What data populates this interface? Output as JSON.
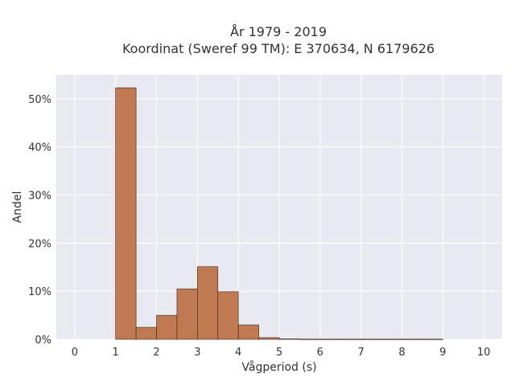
{
  "chart_data": {
    "type": "bar",
    "title_line1": "År 1979 - 2019",
    "title_line2": "Koordinat (Sweref 99 TM): E 370634, N 6179626",
    "xlabel": "Vågperiod (s)",
    "ylabel": "Andel",
    "bin_width": 0.5,
    "bins": [
      {
        "start": 1.0,
        "value": 52.3
      },
      {
        "start": 1.5,
        "value": 2.5
      },
      {
        "start": 2.0,
        "value": 5.0
      },
      {
        "start": 2.5,
        "value": 10.5
      },
      {
        "start": 3.0,
        "value": 15.1
      },
      {
        "start": 3.5,
        "value": 9.9
      },
      {
        "start": 4.0,
        "value": 3.0
      },
      {
        "start": 4.5,
        "value": 0.35
      },
      {
        "start": 5.0,
        "value": 0.1
      },
      {
        "start": 5.5,
        "value": 0.05
      },
      {
        "start": 6.0,
        "value": 0.05
      },
      {
        "start": 6.5,
        "value": 0.05
      },
      {
        "start": 7.0,
        "value": 0.05
      },
      {
        "start": 7.5,
        "value": 0.05
      },
      {
        "start": 8.0,
        "value": 0.05
      },
      {
        "start": 8.5,
        "value": 0.05
      }
    ],
    "xlim": [
      -0.45,
      10.45
    ],
    "ylim": [
      0,
      55
    ],
    "x_ticks": [
      0,
      1,
      2,
      3,
      4,
      5,
      6,
      7,
      8,
      9,
      10
    ],
    "y_ticks": [
      0,
      10,
      20,
      30,
      40,
      50
    ],
    "y_tick_labels": [
      "0%",
      "10%",
      "20%",
      "30%",
      "40%",
      "50%"
    ],
    "grid": true,
    "bar_color": "#C07A52",
    "bar_edge_color": "#3a2418",
    "plot_background": "#E9E9F1",
    "grid_color": "#ffffff"
  }
}
